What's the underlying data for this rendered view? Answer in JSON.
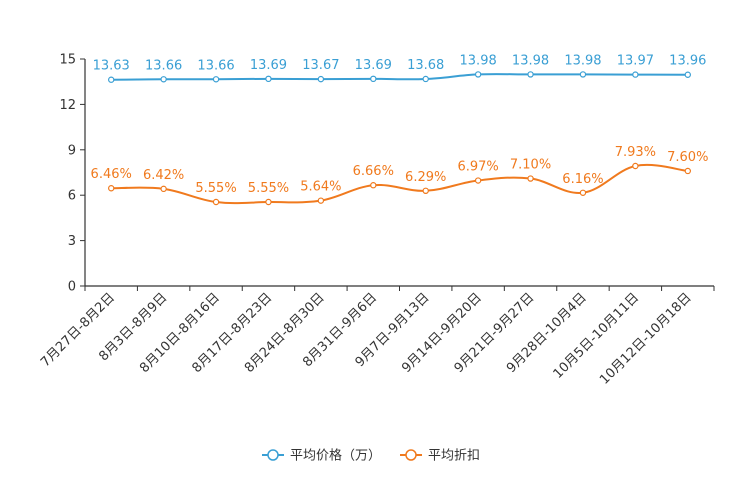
{
  "chart_data": {
    "type": "line",
    "categories": [
      "7月27日-8月2日",
      "8月3日-8月9日",
      "8月10日-8月16日",
      "8月17日-8月23日",
      "8月24日-8月30日",
      "8月31日-9月6日",
      "9月7日-9月13日",
      "9月14日-9月20日",
      "9月21日-9月27日",
      "9月28日-10月4日",
      "10月5日-10月11日",
      "10月12日-10月18日"
    ],
    "series": [
      {
        "name": "平均价格（万）",
        "color": "#3a9fd4",
        "values": [
          13.63,
          13.66,
          13.66,
          13.69,
          13.67,
          13.69,
          13.68,
          13.98,
          13.98,
          13.98,
          13.97,
          13.96
        ],
        "labels": [
          "13.63",
          "13.66",
          "13.66",
          "13.69",
          "13.67",
          "13.69",
          "13.68",
          "13.98",
          "13.98",
          "13.98",
          "13.97",
          "13.96"
        ]
      },
      {
        "name": "平均折扣",
        "color": "#f07a1e",
        "values": [
          6.46,
          6.42,
          5.55,
          5.55,
          5.64,
          6.66,
          6.29,
          6.97,
          7.1,
          6.16,
          7.93,
          7.6
        ],
        "labels": [
          "6.46%",
          "6.42%",
          "5.55%",
          "5.55%",
          "5.64%",
          "6.66%",
          "6.29%",
          "6.97%",
          "7.10%",
          "6.16%",
          "7.93%",
          "7.60%"
        ]
      }
    ],
    "yticks": [
      "0",
      "3",
      "6",
      "9",
      "12",
      "15"
    ],
    "ylim": [
      0,
      15
    ],
    "title": "",
    "xlabel": "",
    "ylabel": "",
    "legend_position": "bottom-center"
  }
}
